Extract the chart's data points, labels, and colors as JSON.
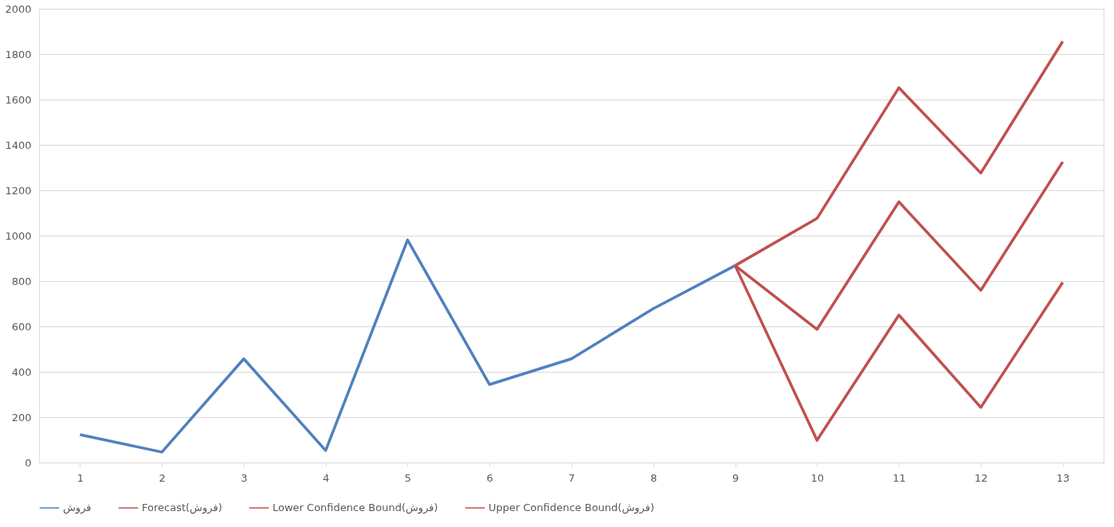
{
  "chart_data": {
    "type": "line",
    "categories": [
      "1",
      "2",
      "3",
      "4",
      "5",
      "6",
      "7",
      "8",
      "9",
      "10",
      "11",
      "12",
      "13"
    ],
    "series": [
      {
        "name": "فروش",
        "color": "#4f81bd",
        "values": [
          123,
          46,
          457,
          53,
          981,
          344,
          457,
          678,
          868,
          null,
          null,
          null,
          null
        ]
      },
      {
        "name": "Forecast(فروش)",
        "color": "#c0504d",
        "values": [
          null,
          null,
          null,
          null,
          null,
          null,
          null,
          null,
          868,
          587,
          1149,
          759,
          1325
        ]
      },
      {
        "name": "Lower Confidence Bound(فروش)",
        "color": "#c0504d",
        "values": [
          null,
          null,
          null,
          null,
          null,
          null,
          null,
          null,
          868,
          98,
          650,
          243,
          794
        ]
      },
      {
        "name": "Upper Confidence Bound(فروش)",
        "color": "#c0504d",
        "values": [
          null,
          null,
          null,
          null,
          null,
          null,
          null,
          null,
          868,
          1076,
          1652,
          1276,
          1856
        ]
      }
    ],
    "ylim": [
      0,
      2000
    ],
    "yticks": [
      0,
      200,
      400,
      600,
      800,
      1000,
      1200,
      1400,
      1600,
      1800,
      2000
    ],
    "grid": "y",
    "legend": "bottom",
    "marker": "none",
    "line_style": "solid"
  }
}
